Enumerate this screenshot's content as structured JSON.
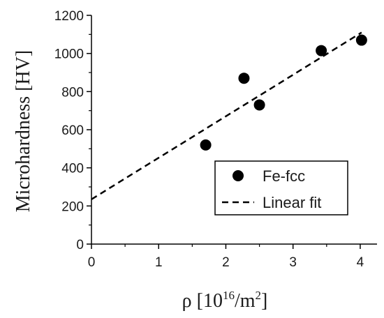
{
  "chart_data": {
    "type": "scatter",
    "xlabel": "ρ [10¹⁶/m²]",
    "xlabel_base": "ρ [10",
    "xlabel_exp": "16",
    "xlabel_mid": "/m",
    "xlabel_exp2": "2",
    "xlabel_end": "]",
    "ylabel": "Microhardness [HV]",
    "xlim": [
      0,
      4.25
    ],
    "ylim": [
      0,
      1200
    ],
    "xticks": [
      "0",
      "1",
      "2",
      "3",
      "4"
    ],
    "yticks": [
      "0",
      "200",
      "400",
      "600",
      "800",
      "1000",
      "1200"
    ],
    "grid": false,
    "legend_position": "bottom-right",
    "series": [
      {
        "name": "Fe-fcc",
        "kind": "scatter",
        "color": "#000000",
        "points": [
          {
            "x": 1.7,
            "y": 520
          },
          {
            "x": 2.27,
            "y": 870
          },
          {
            "x": 2.5,
            "y": 730
          },
          {
            "x": 3.42,
            "y": 1015
          },
          {
            "x": 4.02,
            "y": 1070
          }
        ]
      },
      {
        "name": "Linear fit",
        "kind": "line",
        "style": "dashed",
        "color": "#000000",
        "x": [
          0,
          4.02
        ],
        "y": [
          235,
          1110
        ]
      }
    ]
  }
}
